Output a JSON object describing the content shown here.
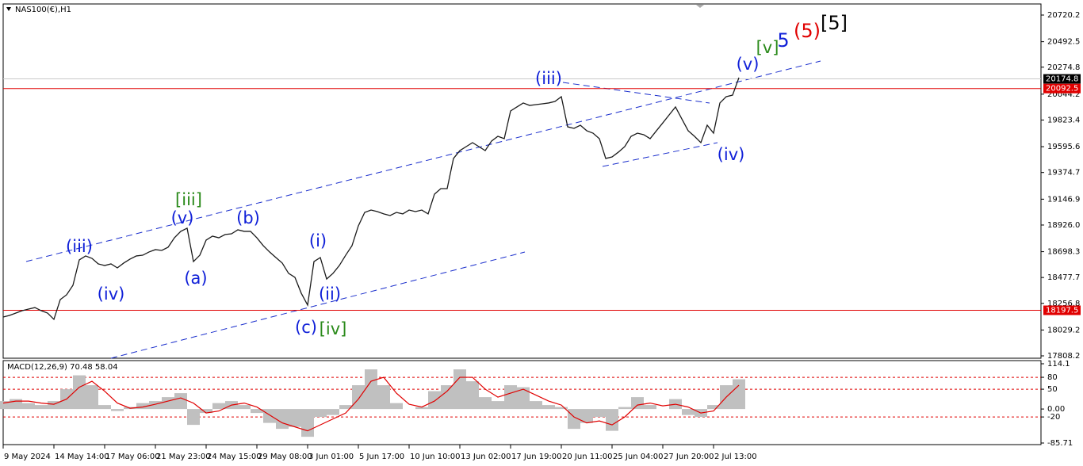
{
  "chart_data": [
    {
      "type": "line",
      "title": "NAS100(€),H1",
      "color": "#1b1b1b",
      "values": [
        18140,
        18154,
        18174,
        18194,
        18208,
        18221,
        18194,
        18174,
        18120,
        18289,
        18330,
        18411,
        18628,
        18662,
        18641,
        18594,
        18580,
        18594,
        18560,
        18601,
        18635,
        18662,
        18668,
        18696,
        18716,
        18709,
        18736,
        18817,
        18872,
        18899,
        18614,
        18668,
        18797,
        18831,
        18817,
        18845,
        18851,
        18885,
        18872,
        18872,
        18817,
        18750,
        18696,
        18648,
        18601,
        18513,
        18479,
        18343,
        18242,
        18614,
        18648,
        18465,
        18513,
        18580,
        18668,
        18750,
        18919,
        19034,
        19054,
        19041,
        19021,
        19007,
        19034,
        19021,
        19054,
        19041,
        19054,
        19021,
        19190,
        19237,
        19237,
        19495,
        19562,
        19596,
        19630,
        19596,
        19562,
        19644,
        19684,
        19664,
        19901,
        19935,
        19969,
        19948,
        19955,
        19962,
        19969,
        19982,
        20023,
        19765,
        19752,
        19779,
        19732,
        19711,
        19664,
        19495,
        19508,
        19549,
        19596,
        19684,
        19711,
        19698,
        19664,
        19732,
        19799,
        19867,
        19935,
        19833,
        19732,
        19684,
        19630,
        19779,
        19711,
        19969,
        20023,
        20036,
        20185
      ],
      "ylim": [
        17788,
        20815
      ],
      "yticks": [
        20720.2,
        20492.5,
        20274.8,
        20044.2,
        19823.4,
        19595.6,
        19374.7,
        19146.9,
        {
          "value": 18926.0,
          "label": "18926.0"
        },
        18698.3,
        18477.7,
        18256.8,
        18029.2,
        17808.2
      ],
      "xticks": [
        {
          "value": 0,
          "label": "9 May 2024"
        },
        {
          "value": 8,
          "label": "14 May 14:00"
        },
        {
          "value": 16,
          "label": "17 May 06:00"
        },
        {
          "value": 24,
          "label": "21 May 23:00"
        },
        {
          "value": 32,
          "label": "24 May 15:00"
        },
        {
          "value": 40,
          "label": "29 May 08:00"
        },
        {
          "value": 48,
          "label": "3 Jun 01:00"
        },
        {
          "value": 56,
          "label": "5 Jun 17:00"
        },
        {
          "value": 64,
          "label": "10 Jun 10:00"
        },
        {
          "value": 72,
          "label": "13 Jun 02:00"
        },
        {
          "value": 80,
          "label": "17 Jun 19:00"
        },
        {
          "value": 88,
          "label": "20 Jun 11:00"
        },
        {
          "value": 96,
          "label": "25 Jun 04:00"
        },
        {
          "value": 104,
          "label": "27 Jun 20:00"
        },
        {
          "value": 112,
          "label": "2 Jul 13:00"
        }
      ],
      "levels": [
        {
          "value": 20174.8,
          "color": "#c8c8c8",
          "box": "#000000"
        },
        {
          "value": 20092.5,
          "color": "#e00000",
          "box": "#e00000"
        },
        {
          "value": 18197.5,
          "color": "#e00000",
          "box": "#e00000"
        }
      ],
      "annotations": [
        {
          "text": "(iii)",
          "color": "#1020d8"
        },
        {
          "text": "(iv)",
          "color": "#1020d8"
        },
        {
          "text": "[iii]",
          "color": "#2a8a1a"
        },
        {
          "text": "(v)",
          "color": "#1020d8"
        },
        {
          "text": "(a)",
          "color": "#1020d8"
        },
        {
          "text": "(b)",
          "color": "#1020d8"
        },
        {
          "text": "(c)",
          "color": "#1020d8"
        },
        {
          "text": "[iv]",
          "color": "#2a8a1a"
        },
        {
          "text": "(i)",
          "color": "#1020d8"
        },
        {
          "text": "(ii)",
          "color": "#1020d8"
        },
        {
          "text": "(iii)",
          "color": "#1020d8"
        },
        {
          "text": "(iv)",
          "color": "#1020d8"
        },
        {
          "text": "(v)",
          "color": "#1020d8"
        },
        {
          "text": "[v]",
          "color": "#2a8a1a"
        },
        {
          "text": "5",
          "color": "#1020d8"
        },
        {
          "text": "(5)",
          "color": "#e00000"
        },
        {
          "text": "[5]",
          "color": "#000000"
        }
      ]
    },
    {
      "type": "macd",
      "title": "MACD(12,26,9) 70.48 58.04",
      "histogram": {
        "color": "#c0c0c0",
        "values": [
          20,
          25,
          15,
          10,
          20,
          50,
          85,
          60,
          10,
          -5,
          5,
          15,
          20,
          30,
          40,
          -40,
          -10,
          15,
          20,
          10,
          -10,
          -35,
          -50,
          -45,
          -70,
          -20,
          -15,
          10,
          60,
          100,
          60,
          15,
          0,
          5,
          45,
          60,
          100,
          70,
          30,
          20,
          60,
          55,
          20,
          10,
          5,
          -50,
          -35,
          -20,
          -55,
          5,
          30,
          10,
          0,
          25,
          -15,
          -20,
          10,
          60,
          75
        ]
      },
      "signal": {
        "color": "#e00000",
        "values": [
          15,
          20,
          20,
          15,
          12,
          25,
          55,
          70,
          45,
          15,
          2,
          5,
          12,
          20,
          28,
          15,
          -10,
          -5,
          10,
          15,
          5,
          -15,
          -35,
          -45,
          -55,
          -40,
          -25,
          -10,
          25,
          70,
          80,
          40,
          12,
          5,
          20,
          45,
          80,
          80,
          50,
          30,
          40,
          50,
          35,
          20,
          10,
          -20,
          -35,
          -30,
          -40,
          -20,
          10,
          15,
          8,
          12,
          5,
          -10,
          -5,
          30,
          60
        ]
      },
      "ylim": [
        -85.71,
        114.1
      ],
      "yticks": [
        114.1,
        80,
        50,
        {
          "value": 0,
          "label": "0.00"
        },
        -20,
        -85.71
      ],
      "levels": [
        80,
        50,
        -20
      ]
    }
  ]
}
